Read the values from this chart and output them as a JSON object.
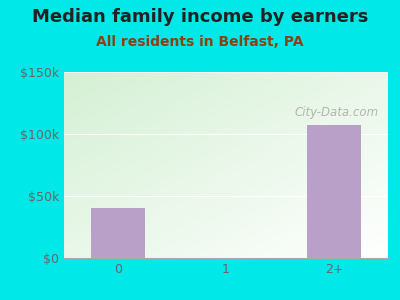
{
  "title": "Median family income by earners",
  "subtitle": "All residents in Belfast, PA",
  "categories": [
    "0",
    "1",
    "2+"
  ],
  "values": [
    40000,
    0,
    107000
  ],
  "bar_color": "#b8a0c8",
  "background_outer": "#00e8e8",
  "title_color": "#222222",
  "subtitle_color": "#8b4010",
  "tick_color": "#666666",
  "ylim": [
    0,
    150000
  ],
  "yticks": [
    0,
    50000,
    100000,
    150000
  ],
  "ytick_labels": [
    "$0",
    "$50k",
    "$100k",
    "$150k"
  ],
  "watermark": "City-Data.com",
  "title_fontsize": 13,
  "subtitle_fontsize": 10,
  "tick_fontsize": 9
}
